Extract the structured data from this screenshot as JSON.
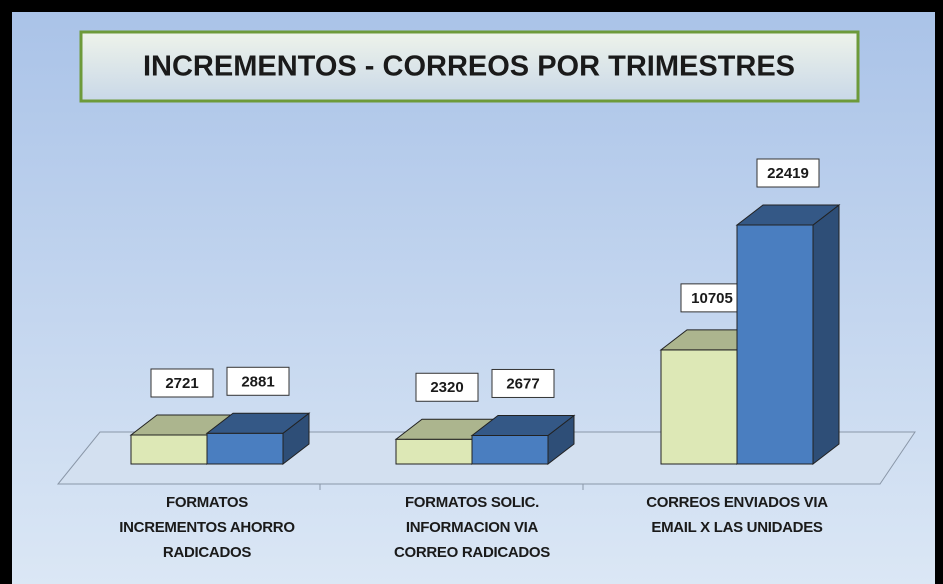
{
  "chart_data": {
    "type": "bar3d",
    "title": "INCREMENTOS - CORREOS POR TRIMESTRES",
    "categories": [
      "FORMATOS\nINCREMENTOS AHORRO\nRADICADOS",
      "FORMATOS SOLIC.\nINFORMACION VIA\nCORREO RADICADOS",
      "CORREOS ENVIADOS VIA\nEMAIL X LAS UNIDADES"
    ],
    "series": [
      {
        "color": "#dde8b6",
        "values": [
          2721,
          2320,
          10705
        ]
      },
      {
        "color": "#4a7ec0",
        "values": [
          2881,
          2677,
          22419
        ]
      }
    ]
  }
}
